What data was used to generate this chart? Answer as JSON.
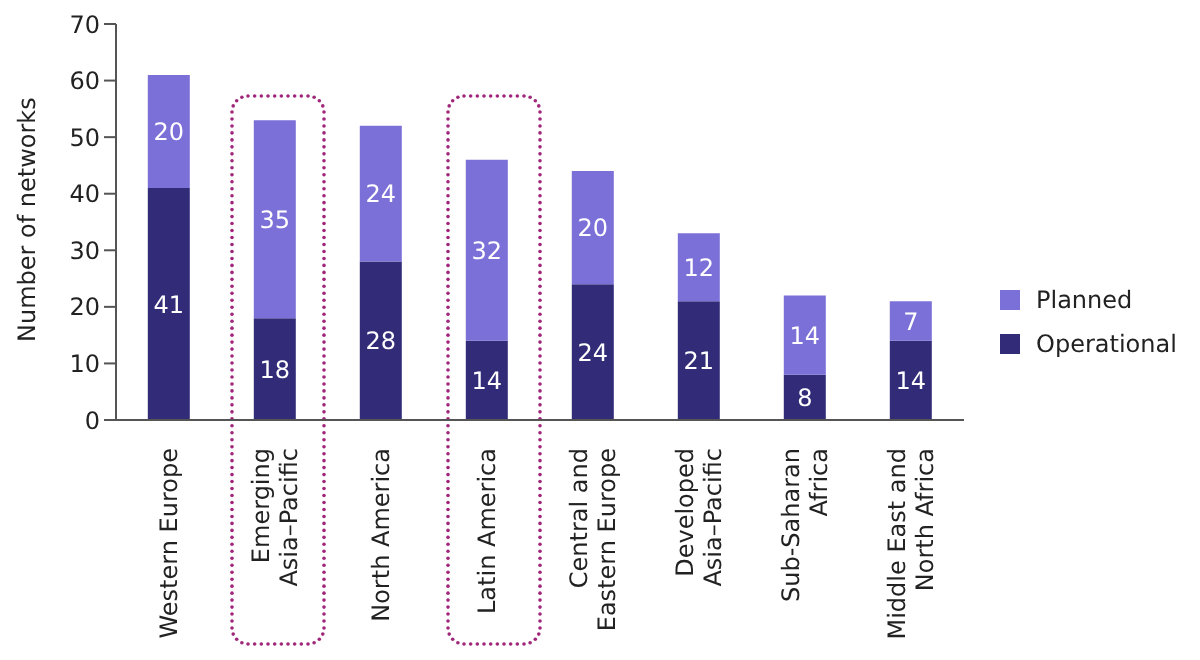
{
  "chart_data": {
    "type": "bar",
    "stacked": true,
    "ylabel": "Number of networks",
    "categories": [
      "Western Europe",
      "Emerging Asia–Pacific",
      "North America",
      "Latin America",
      "Central and Eastern Europe",
      "Developed Asia–Pacific",
      "Sub-Saharan Africa",
      "Middle East and North Africa"
    ],
    "series": [
      {
        "name": "Operational",
        "color": "#322c78",
        "values": [
          41,
          18,
          28,
          14,
          24,
          21,
          8,
          14
        ]
      },
      {
        "name": "Planned",
        "color": "#7b6fd8",
        "values": [
          20,
          35,
          24,
          32,
          20,
          12,
          14,
          7
        ]
      }
    ],
    "ylim": [
      0,
      70
    ],
    "yticks": [
      0,
      10,
      20,
      30,
      40,
      50,
      60,
      70
    ],
    "data_labels": true,
    "legend": "right",
    "grid": false
  }
}
